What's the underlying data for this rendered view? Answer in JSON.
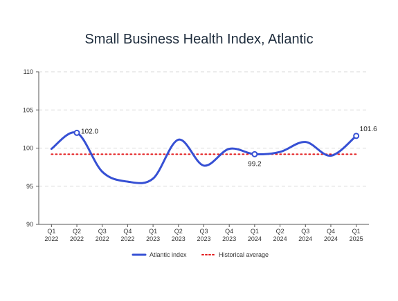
{
  "chart_data": {
    "type": "line",
    "title": "Small Business Health Index, Atlantic",
    "xlabel": "",
    "ylabel": "",
    "categories": [
      [
        "Q1",
        "2022"
      ],
      [
        "Q2",
        "2022"
      ],
      [
        "Q3",
        "2022"
      ],
      [
        "Q4",
        "2022"
      ],
      [
        "Q1",
        "2023"
      ],
      [
        "Q2",
        "2023"
      ],
      [
        "Q3",
        "2023"
      ],
      [
        "Q4",
        "2023"
      ],
      [
        "Q1",
        "2024"
      ],
      [
        "Q2",
        "2024"
      ],
      [
        "Q3",
        "2024"
      ],
      [
        "Q4",
        "2024"
      ],
      [
        "Q1",
        "2025"
      ]
    ],
    "ylim": [
      90,
      110
    ],
    "yticks": [
      90,
      95,
      100,
      105,
      110
    ],
    "grid": "horizontal-dashed",
    "series": [
      {
        "name": "Atlantic index",
        "color": "#3650d4",
        "values": [
          99.9,
          102.0,
          96.9,
          95.6,
          96.0,
          101.1,
          97.7,
          99.9,
          99.2,
          99.5,
          100.8,
          99.0,
          101.6
        ]
      }
    ],
    "reference_line": {
      "name": "Historical average",
      "value": 99.2,
      "color": "#e31a1c",
      "style": "dotted"
    },
    "annotations": [
      {
        "category_index": 1,
        "label": "102.0",
        "position": "right"
      },
      {
        "category_index": 8,
        "label": "99.2",
        "position": "below"
      },
      {
        "category_index": 12,
        "label": "101.6",
        "position": "above-right"
      }
    ],
    "legend_position": "bottom-center"
  }
}
